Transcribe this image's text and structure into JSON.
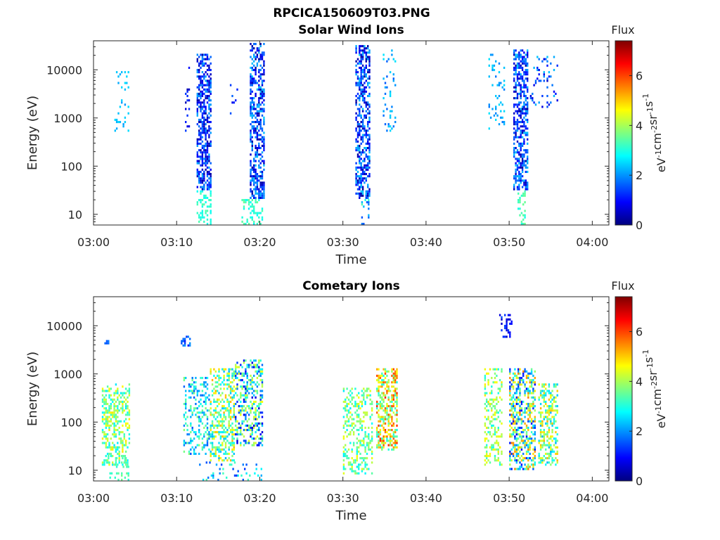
{
  "figure": {
    "title": "RPCICA150609T03.PNG"
  },
  "colormap": {
    "stops": [
      "#00007f",
      "#0000ff",
      "#007fff",
      "#00ffff",
      "#7fff7f",
      "#ffff00",
      "#ff7f00",
      "#ff0000",
      "#7f0000"
    ]
  },
  "chart_data": [
    {
      "type": "heatmap",
      "title": "Solar Wind Ions",
      "xlabel": "Time",
      "ylabel": "Energy (eV)",
      "x_ticks": [
        "03:00",
        "03:10",
        "03:20",
        "03:30",
        "03:40",
        "03:50",
        "04:00"
      ],
      "x_range_minutes": [
        0,
        62
      ],
      "y_ticks": [
        "10",
        "100",
        "1000",
        "10000"
      ],
      "y_scale": "log",
      "y_range": [
        6,
        40000
      ],
      "colorbar": {
        "label": "Flux",
        "unit": "eV-1cm-2sr-1s-1",
        "ticks": [
          "0",
          "2",
          "4",
          "6"
        ],
        "range": [
          0,
          7.4
        ]
      },
      "clusters": [
        {
          "t_start": 2.5,
          "t_end": 4.3,
          "e_min": 500,
          "e_max": 12000,
          "flux_min": 2.0,
          "flux_max": 2.6,
          "density": 0.1
        },
        {
          "t_start": 11.0,
          "t_end": 11.5,
          "e_min": 500,
          "e_max": 13000,
          "flux_min": 0.3,
          "flux_max": 1.5,
          "density": 0.15
        },
        {
          "t_start": 12.4,
          "t_end": 14.0,
          "e_min": 30,
          "e_max": 20000,
          "flux_min": 0.2,
          "flux_max": 2.2,
          "density": 0.55
        },
        {
          "t_start": 12.4,
          "t_end": 14.0,
          "e_min": 6,
          "e_max": 30,
          "flux_min": 2.8,
          "flux_max": 3.4,
          "density": 0.35
        },
        {
          "t_start": 16.2,
          "t_end": 17.2,
          "e_min": 1000,
          "e_max": 8000,
          "flux_min": 0.5,
          "flux_max": 2.2,
          "density": 0.1
        },
        {
          "t_start": 18.8,
          "t_end": 20.5,
          "e_min": 20,
          "e_max": 35000,
          "flux_min": 0.2,
          "flux_max": 2.4,
          "density": 0.55
        },
        {
          "t_start": 17.8,
          "t_end": 20.3,
          "e_min": 6,
          "e_max": 20,
          "flux_min": 2.8,
          "flux_max": 3.6,
          "density": 0.35
        },
        {
          "t_start": 31.5,
          "t_end": 33.2,
          "e_min": 20,
          "e_max": 30000,
          "flux_min": 0.2,
          "flux_max": 2.4,
          "density": 0.55
        },
        {
          "t_start": 32.2,
          "t_end": 33.2,
          "e_min": 6,
          "e_max": 20,
          "flux_min": 1.5,
          "flux_max": 3.4,
          "density": 0.35
        },
        {
          "t_start": 34.8,
          "t_end": 36.3,
          "e_min": 500,
          "e_max": 25000,
          "flux_min": 1.5,
          "flux_max": 2.6,
          "density": 0.12
        },
        {
          "t_start": 47.5,
          "t_end": 49.5,
          "e_min": 500,
          "e_max": 20000,
          "flux_min": 1.8,
          "flux_max": 2.6,
          "density": 0.12
        },
        {
          "t_start": 50.5,
          "t_end": 52.3,
          "e_min": 30,
          "e_max": 25000,
          "flux_min": 0.2,
          "flux_max": 2.4,
          "density": 0.55
        },
        {
          "t_start": 51.0,
          "t_end": 52.0,
          "e_min": 6,
          "e_max": 30,
          "flux_min": 2.8,
          "flux_max": 3.6,
          "density": 0.35
        },
        {
          "t_start": 52.5,
          "t_end": 55.8,
          "e_min": 1500,
          "e_max": 20000,
          "flux_min": 0.5,
          "flux_max": 2.4,
          "density": 0.1
        }
      ]
    },
    {
      "type": "heatmap",
      "title": "Cometary Ions",
      "xlabel": "Time",
      "ylabel": "Energy (eV)",
      "x_ticks": [
        "03:00",
        "03:10",
        "03:20",
        "03:30",
        "03:40",
        "03:50",
        "04:00"
      ],
      "x_range_minutes": [
        0,
        62
      ],
      "y_ticks": [
        "10",
        "100",
        "1000",
        "10000"
      ],
      "y_scale": "log",
      "y_range": [
        6,
        40000
      ],
      "colorbar": {
        "label": "Flux",
        "unit": "eV-1cm-2sr-1s-1",
        "ticks": [
          "0",
          "2",
          "4",
          "6"
        ],
        "range": [
          0,
          7.4
        ]
      },
      "clusters": [
        {
          "t_start": 1.0,
          "t_end": 4.3,
          "e_min": 12,
          "e_max": 600,
          "flux_min": 2.6,
          "flux_max": 4.8,
          "density": 0.45
        },
        {
          "t_start": 1.5,
          "t_end": 4.3,
          "e_min": 6,
          "e_max": 20,
          "flux_min": 3.0,
          "flux_max": 3.6,
          "density": 0.25
        },
        {
          "t_start": 1.3,
          "t_end": 1.8,
          "e_min": 4000,
          "e_max": 5000,
          "flux_min": 1.5,
          "flux_max": 1.8,
          "density": 0.5
        },
        {
          "t_start": 10.5,
          "t_end": 11.5,
          "e_min": 3500,
          "e_max": 6000,
          "flux_min": 1.0,
          "flux_max": 2.0,
          "density": 0.4
        },
        {
          "t_start": 10.8,
          "t_end": 13.8,
          "e_min": 20,
          "e_max": 800,
          "flux_min": 1.5,
          "flux_max": 3.8,
          "density": 0.35
        },
        {
          "t_start": 14.0,
          "t_end": 16.8,
          "e_min": 15,
          "e_max": 1300,
          "flux_min": 2.2,
          "flux_max": 5.2,
          "density": 0.45
        },
        {
          "t_start": 17.0,
          "t_end": 20.2,
          "e_min": 30,
          "e_max": 1800,
          "flux_min": 0.6,
          "flux_max": 4.6,
          "density": 0.4
        },
        {
          "t_start": 12.5,
          "t_end": 20.2,
          "e_min": 6,
          "e_max": 15,
          "flux_min": 1.2,
          "flux_max": 3.4,
          "density": 0.12
        },
        {
          "t_start": 30.0,
          "t_end": 33.5,
          "e_min": 8,
          "e_max": 500,
          "flux_min": 2.6,
          "flux_max": 4.6,
          "density": 0.35
        },
        {
          "t_start": 34.0,
          "t_end": 36.5,
          "e_min": 25,
          "e_max": 1300,
          "flux_min": 2.8,
          "flux_max": 6.2,
          "density": 0.5
        },
        {
          "t_start": 47.0,
          "t_end": 49.2,
          "e_min": 12,
          "e_max": 1200,
          "flux_min": 2.8,
          "flux_max": 4.8,
          "density": 0.35
        },
        {
          "t_start": 48.8,
          "t_end": 50.3,
          "e_min": 5000,
          "e_max": 16000,
          "flux_min": 0.5,
          "flux_max": 1.5,
          "density": 0.3
        },
        {
          "t_start": 50.0,
          "t_end": 53.2,
          "e_min": 10,
          "e_max": 1200,
          "flux_min": 0.8,
          "flux_max": 5.6,
          "density": 0.5
        },
        {
          "t_start": 53.5,
          "t_end": 55.8,
          "e_min": 12,
          "e_max": 600,
          "flux_min": 2.2,
          "flux_max": 5.2,
          "density": 0.45
        }
      ]
    }
  ]
}
